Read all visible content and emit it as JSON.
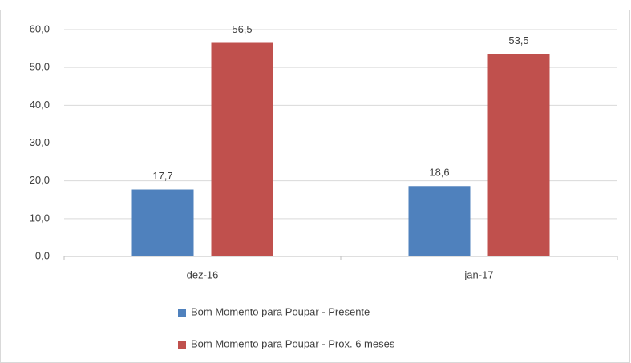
{
  "chart_data": {
    "type": "bar",
    "categories": [
      "dez-16",
      "jan-17"
    ],
    "series": [
      {
        "name": "Bom Momento para Poupar - Presente",
        "color": "#4f81bd",
        "values": [
          17.7,
          18.6
        ],
        "value_labels": [
          "17,7",
          "18,6"
        ]
      },
      {
        "name": "Bom Momento para Poupar - Prox. 6 meses",
        "color": "#c0504d",
        "values": [
          56.5,
          53.5
        ],
        "value_labels": [
          "56,5",
          "53,5"
        ]
      }
    ],
    "ylim": [
      0,
      60
    ],
    "yticks": [
      {
        "value": 0,
        "label": "0,0"
      },
      {
        "value": 10,
        "label": "10,0"
      },
      {
        "value": 20,
        "label": "20,0"
      },
      {
        "value": 30,
        "label": "30,0"
      },
      {
        "value": 40,
        "label": "40,0"
      },
      {
        "value": 50,
        "label": "50,0"
      },
      {
        "value": 60,
        "label": "60,0"
      }
    ],
    "grid": true,
    "legend": "bottom"
  }
}
